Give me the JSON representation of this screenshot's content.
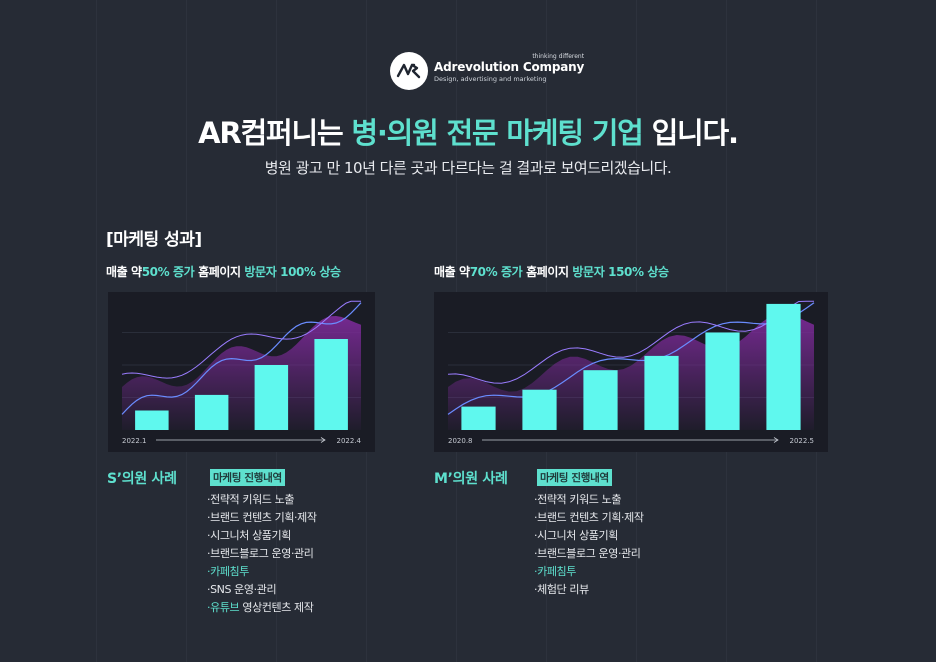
{
  "brand": {
    "tagline": "thinking different",
    "name": "Adrevolution Company",
    "sub": "Design, advertising and marketing",
    "mark": "AR"
  },
  "headline": {
    "prefix": "AR컴퍼니는 ",
    "accent": "병·의원 전문 마케팅 기업",
    "suffix": " 입니다."
  },
  "subheadline": "병원 광고 만 10년 다른 곳과 다르다는 걸 결과로 보여드리겠습니다.",
  "section_title": "[마케팅 성과]",
  "cases": [
    {
      "headline": {
        "p1": "매출 약",
        "h1": "50% 증가",
        "p2": " 홈페이지 ",
        "h2": "방문자 100% 상승"
      },
      "name": "S’의원 사례",
      "badge": "마케팅 진행내역",
      "items": [
        {
          "text": "·전략적 키워드 노출",
          "highlight": false
        },
        {
          "text": "·브랜드 컨텐츠 기획·제작",
          "highlight": false
        },
        {
          "text": "·시그니처 상품기획",
          "highlight": false
        },
        {
          "text": "·브랜드블로그 운영·관리",
          "highlight": false
        },
        {
          "text": "·카페침투",
          "highlight": true
        },
        {
          "text": "·SNS 운영·관리",
          "highlight": false
        }
      ],
      "last_item": {
        "accent": "·유튜브",
        "rest": " 영상컨텐츠 제작"
      },
      "chart": {
        "start": "2022.1",
        "end": "2022.4",
        "values": [
          0.15,
          0.27,
          0.5,
          0.7
        ]
      }
    },
    {
      "headline": {
        "p1": "매출 약",
        "h1": "70% 증가",
        "p2": " 홈페이지 ",
        "h2": "방문자 150% 상승"
      },
      "name": "M’의원 사례",
      "badge": "마케팅 진행내역",
      "items": [
        {
          "text": "·전략적 키워드 노출",
          "highlight": false
        },
        {
          "text": "·브랜드 컨텐츠 기획·제작",
          "highlight": false
        },
        {
          "text": "·시그니처 상품기획",
          "highlight": false
        },
        {
          "text": "·브랜드블로그 운영·관리",
          "highlight": false
        },
        {
          "text": "·카페침투",
          "highlight": true
        },
        {
          "text": "·체험단 리뷰",
          "highlight": false
        }
      ],
      "chart": {
        "start": "2020.8",
        "end": "2022.5",
        "values": [
          0.18,
          0.31,
          0.46,
          0.57,
          0.75,
          0.97
        ]
      }
    }
  ],
  "colors": {
    "accent": "#5ee0ce",
    "background": "#262b35",
    "chart_bg": "#1a1c25",
    "area": "#7a2a96"
  }
}
